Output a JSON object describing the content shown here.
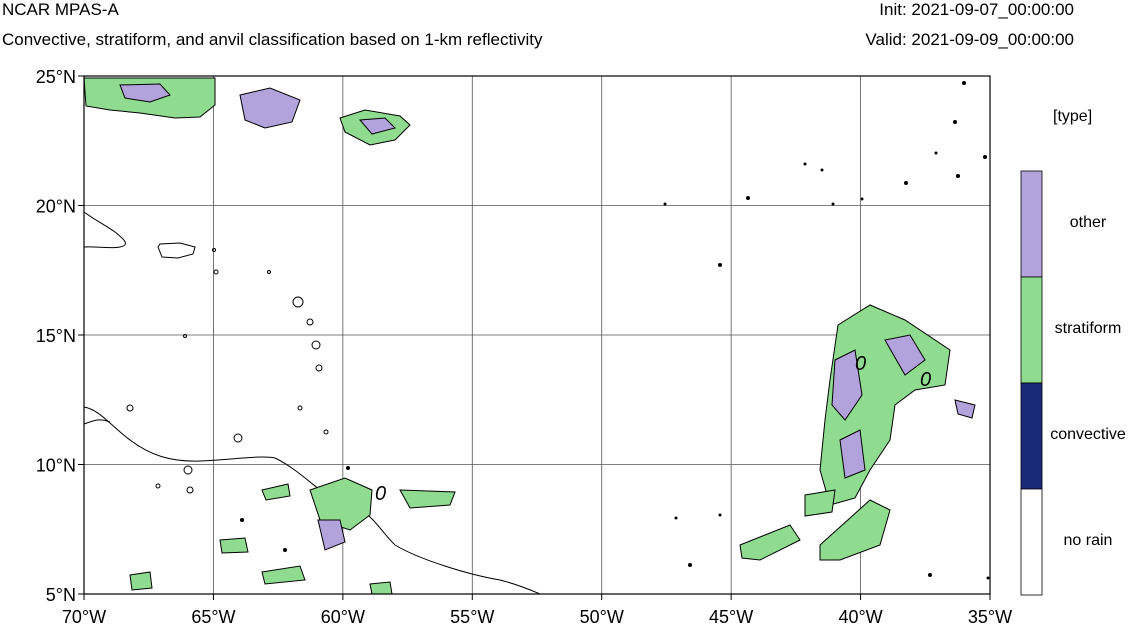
{
  "header": {
    "title": "NCAR MPAS-A",
    "subtitle": "Convective, stratiform, and anvil classification based on 1-km reflectivity",
    "init": "Init: 2021-09-07_00:00:00",
    "valid": "Valid: 2021-09-09_00:00:00"
  },
  "map": {
    "lat_labels": [
      "25°N",
      "20°N",
      "15°N",
      "10°N",
      "5°N"
    ],
    "lon_labels": [
      "70°W",
      "65°W",
      "60°W",
      "55°W",
      "50°W",
      "45°W",
      "40°W",
      "35°W"
    ],
    "extent": {
      "lon_min": -70,
      "lon_max": -35,
      "lat_min": 5,
      "lat_max": 25
    },
    "contour_labels": [
      "0",
      "0",
      "0"
    ],
    "grid": true
  },
  "colorbar": {
    "title": "[type]",
    "categories": [
      {
        "label": "other",
        "color": "#b3a3dc"
      },
      {
        "label": "stratiform",
        "color": "#8fdb8f"
      },
      {
        "label": "convective",
        "color": "#1b2a78"
      },
      {
        "label": "no rain",
        "color": "#ffffff"
      }
    ]
  }
}
